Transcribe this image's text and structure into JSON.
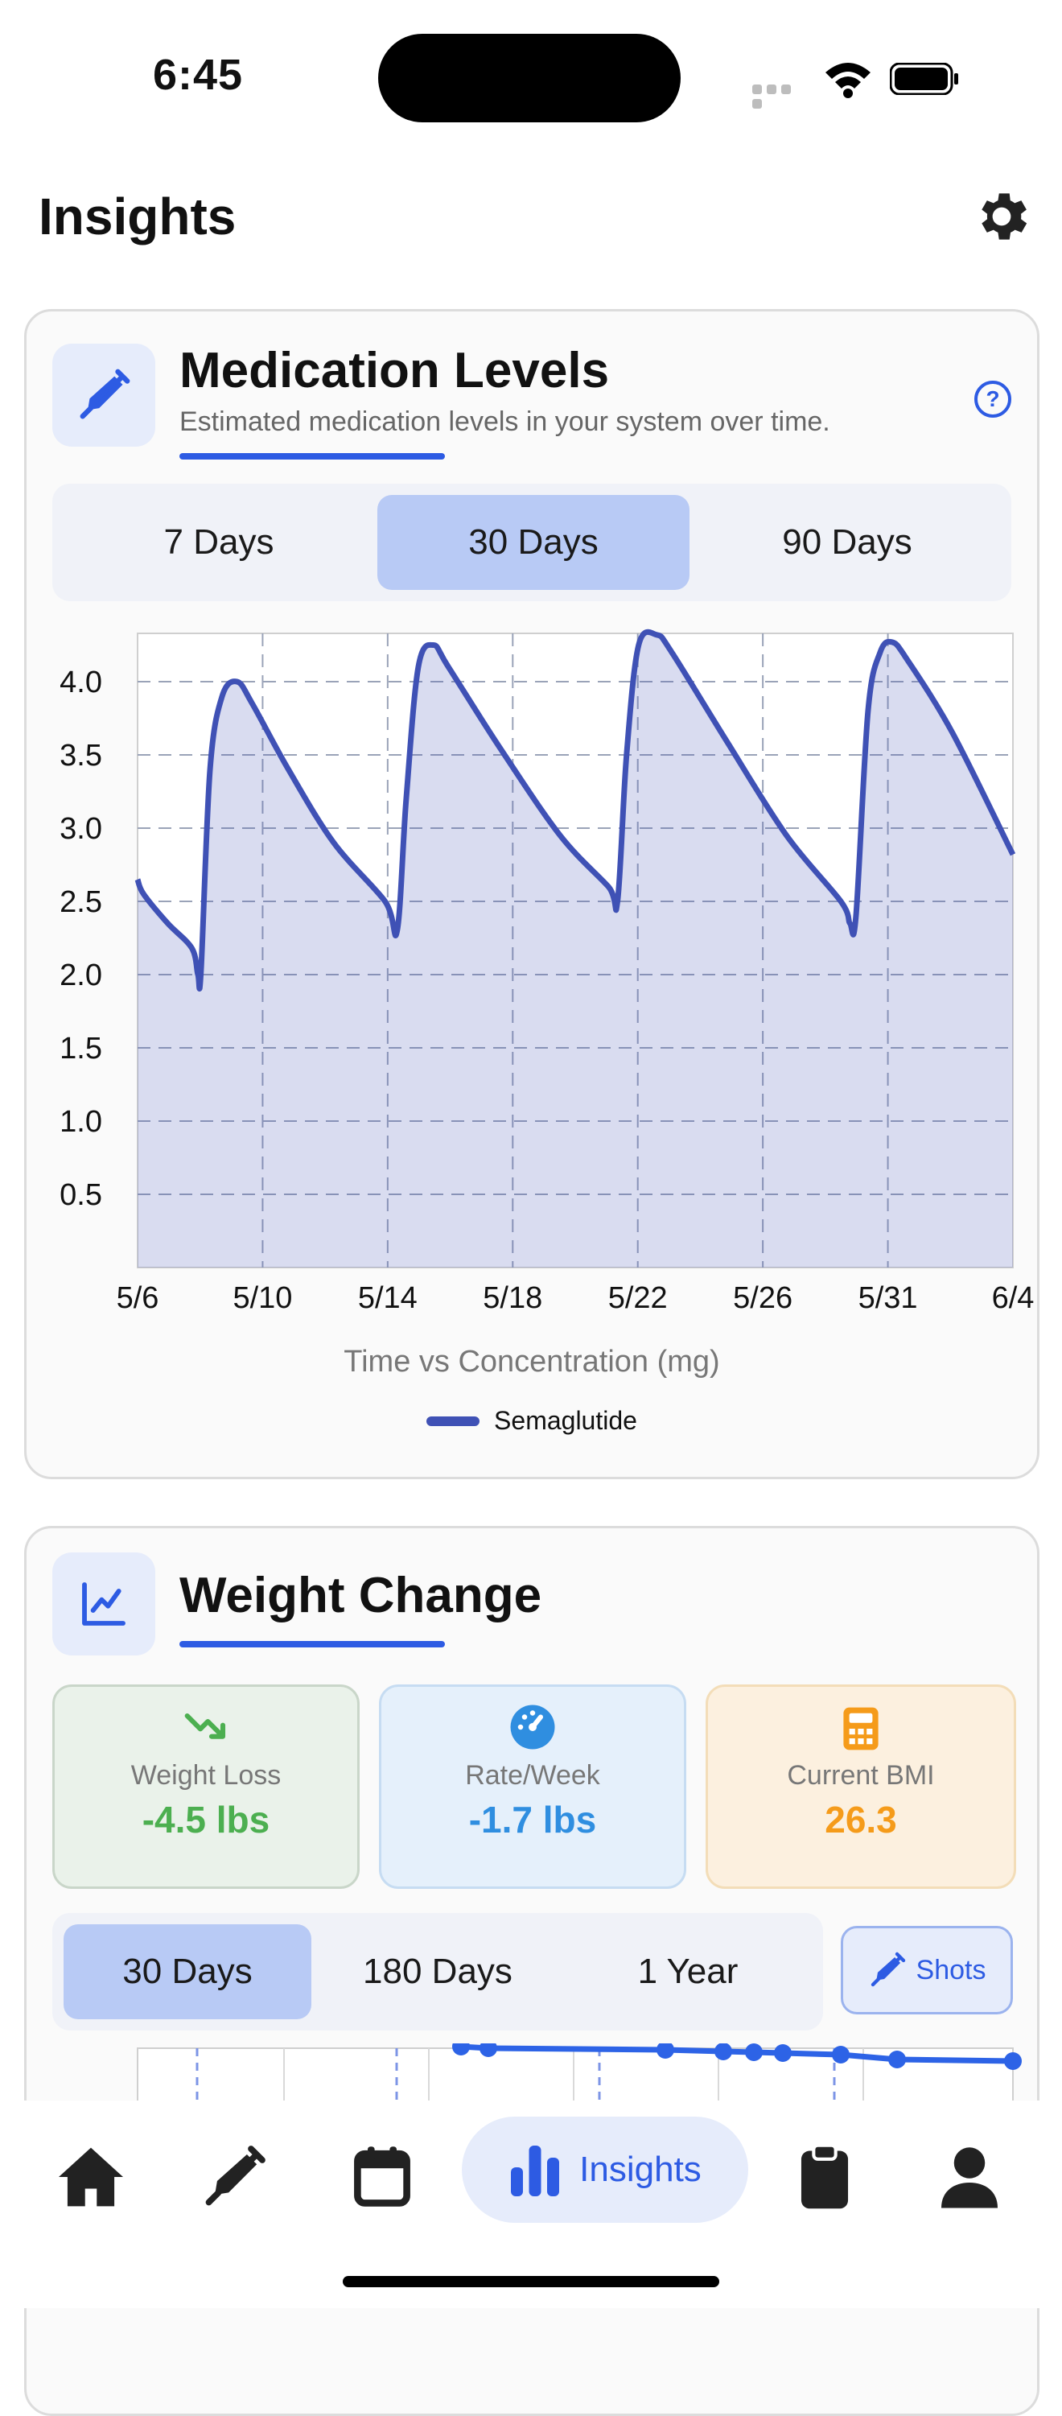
{
  "status_bar": {
    "time": "6:45"
  },
  "header": {
    "title": "Insights"
  },
  "medication_card": {
    "title": "Medication Levels",
    "subtitle": "Estimated medication levels in your system over time.",
    "ranges": [
      "7 Days",
      "30 Days",
      "90 Days"
    ],
    "selected_range": "30 Days",
    "caption": "Time vs Concentration (mg)",
    "legend": "Semaglutide"
  },
  "chart_data": {
    "type": "area",
    "xlabel": "Time vs Concentration (mg)",
    "ylabel": "",
    "x_ticks": [
      "5/6",
      "5/10",
      "5/14",
      "5/18",
      "5/22",
      "5/26",
      "5/31",
      "6/4"
    ],
    "y_ticks": [
      "4.0",
      "3.5",
      "3.0",
      "2.5",
      "2.0",
      "1.5",
      "1.0",
      "0.5"
    ],
    "ylim": [
      0,
      4.33
    ],
    "legend_position": "bottom",
    "grid": true,
    "series": [
      {
        "name": "Semaglutide",
        "color": "#3f51b5",
        "points": [
          [
            0,
            2.65
          ],
          [
            0.2,
            2.55
          ],
          [
            1.0,
            2.35
          ],
          [
            1.8,
            2.18
          ],
          [
            2.0,
            2.0
          ],
          [
            2.1,
            2.02
          ],
          [
            2.4,
            3.4
          ],
          [
            2.8,
            3.9
          ],
          [
            3.3,
            4.0
          ],
          [
            3.8,
            3.85
          ],
          [
            5.0,
            3.4
          ],
          [
            6.5,
            2.9
          ],
          [
            8.2,
            2.5
          ],
          [
            8.6,
            2.3
          ],
          [
            8.9,
            3.2
          ],
          [
            9.3,
            4.1
          ],
          [
            9.8,
            4.25
          ],
          [
            10.3,
            4.1
          ],
          [
            12.0,
            3.55
          ],
          [
            14.0,
            2.95
          ],
          [
            15.6,
            2.6
          ],
          [
            15.9,
            2.5
          ],
          [
            16.2,
            3.5
          ],
          [
            16.6,
            4.25
          ],
          [
            17.2,
            4.32
          ],
          [
            17.7,
            4.2
          ],
          [
            19.5,
            3.6
          ],
          [
            21.5,
            2.95
          ],
          [
            23.3,
            2.5
          ],
          [
            23.6,
            2.35
          ],
          [
            23.8,
            2.4
          ],
          [
            24.2,
            3.8
          ],
          [
            24.6,
            4.2
          ],
          [
            25.0,
            4.27
          ],
          [
            25.5,
            4.15
          ],
          [
            27.0,
            3.65
          ],
          [
            29.0,
            2.82
          ]
        ]
      }
    ]
  },
  "weight_card": {
    "title": "Weight Change",
    "stats": [
      {
        "label": "Weight Loss",
        "value": "-4.5 lbs",
        "color": "#4caf50",
        "icon": "trend-down-icon"
      },
      {
        "label": "Rate/Week",
        "value": "-1.7 lbs",
        "color": "#2f8ee0",
        "icon": "speedometer-icon"
      },
      {
        "label": "Current BMI",
        "value": "26.3",
        "color": "#f59b1a",
        "icon": "calculator-icon"
      }
    ],
    "ranges": [
      "30 Days",
      "180 Days",
      "1 Year"
    ],
    "selected_range": "30 Days",
    "shots_label": "Shots"
  },
  "nav": {
    "active_label": "Insights"
  }
}
